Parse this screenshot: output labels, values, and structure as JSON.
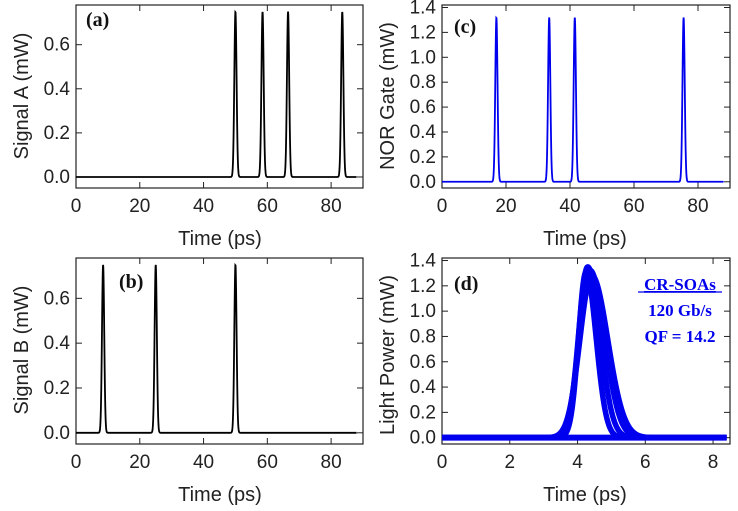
{
  "chart_data": [
    {
      "id": "a",
      "type": "line",
      "panel_label": "(a)",
      "xlabel": "Time (ps)",
      "ylabel": "Signal  A (mW)",
      "xlim": [
        0,
        90
      ],
      "ylim": [
        -0.05,
        0.78
      ],
      "xticks": [
        0,
        20,
        40,
        60,
        80
      ],
      "yticks": [
        0.0,
        0.2,
        0.4,
        0.6
      ],
      "ytick_labels": [
        "0.0",
        "0.2",
        "0.4",
        "0.6"
      ],
      "color": "#000000",
      "baseline": 0.0,
      "pulse_width_ps": 0.5,
      "pulses": [
        {
          "center": 50.0,
          "peak": 0.75
        },
        {
          "center": 58.5,
          "peak": 0.75
        },
        {
          "center": 66.5,
          "peak": 0.75
        },
        {
          "center": 83.5,
          "peak": 0.75
        }
      ],
      "x_range": [
        0,
        88
      ]
    },
    {
      "id": "b",
      "type": "line",
      "panel_label": "(b)",
      "xlabel": "Time (ps)",
      "ylabel": "Signal  B (mW)",
      "xlim": [
        0,
        90
      ],
      "ylim": [
        -0.05,
        0.78
      ],
      "xticks": [
        0,
        20,
        40,
        60,
        80
      ],
      "yticks": [
        0.0,
        0.2,
        0.4,
        0.6
      ],
      "ytick_labels": [
        "0.0",
        "0.2",
        "0.4",
        "0.6"
      ],
      "color": "#000000",
      "baseline": 0.0,
      "pulse_width_ps": 0.5,
      "pulses": [
        {
          "center": 8.5,
          "peak": 0.75
        },
        {
          "center": 25.0,
          "peak": 0.75
        },
        {
          "center": 50.0,
          "peak": 0.75
        }
      ],
      "x_range": [
        0,
        88
      ]
    },
    {
      "id": "c",
      "type": "line",
      "panel_label": "(c)",
      "xlabel": "Time (ps)",
      "ylabel": "NOR Gate (mW)",
      "xlim": [
        0,
        90
      ],
      "ylim": [
        -0.05,
        1.42
      ],
      "xticks": [
        0,
        20,
        40,
        60,
        80
      ],
      "yticks": [
        0.0,
        0.2,
        0.4,
        0.6,
        0.8,
        1.0,
        1.2,
        1.4
      ],
      "ytick_labels": [
        "0.0",
        "0.2",
        "0.4",
        "0.6",
        "0.8",
        "1.0",
        "1.2",
        "1.4"
      ],
      "color": "#0000ee",
      "baseline": 0.0,
      "pulse_width_ps": 0.5,
      "pulses": [
        {
          "center": 17.0,
          "peak": 1.32
        },
        {
          "center": 33.5,
          "peak": 1.32
        },
        {
          "center": 41.5,
          "peak": 1.32
        },
        {
          "center": 75.5,
          "peak": 1.32
        }
      ],
      "x_range": [
        0,
        88
      ]
    },
    {
      "id": "d",
      "type": "line",
      "panel_label": "(d)",
      "xlabel": "Time (ps)",
      "ylabel": "Light Power (mW)",
      "xlim": [
        0,
        8.5
      ],
      "ylim": [
        -0.05,
        1.42
      ],
      "xticks": [
        0,
        2,
        4,
        6,
        8
      ],
      "yticks": [
        0.0,
        0.2,
        0.4,
        0.6,
        0.8,
        1.0,
        1.2,
        1.4
      ],
      "ytick_labels": [
        "0.0",
        "0.2",
        "0.4",
        "0.6",
        "0.8",
        "1.0",
        "1.2",
        "1.4"
      ],
      "color": "#0000ee",
      "eye_diagram": true,
      "eye_peak": 1.35,
      "eye_center_ps": 4.3,
      "eye_width_ps": 0.38,
      "x_range": [
        0,
        8.4
      ],
      "annotations": [
        "CR-SOAs",
        "120 Gb/s",
        "QF = 14.2"
      ]
    }
  ]
}
